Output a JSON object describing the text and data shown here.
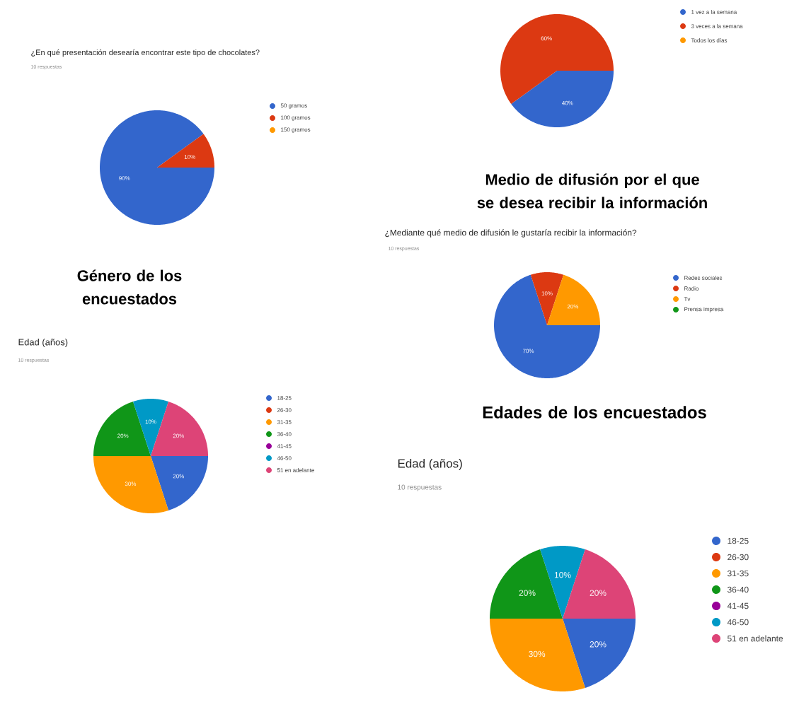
{
  "chart_data": [
    {
      "type": "pie",
      "title": "¿En qué presentación desearía encontrar este tipo de chocolates?",
      "annotations": [
        "10 respuestas"
      ],
      "categories": [
        "50 gramos",
        "100 gramos",
        "150 gramos"
      ],
      "values": [
        90,
        10,
        0
      ],
      "colors": [
        "#3366cc",
        "#dc3912",
        "#ff9900"
      ],
      "value_labels": [
        "90%",
        "10%",
        null
      ],
      "legend": "right"
    },
    {
      "type": "pie",
      "categories": [
        "1 vez a la semana",
        "3 veces a la semana",
        "Todos los días"
      ],
      "values": [
        40,
        60,
        0
      ],
      "colors": [
        "#3366cc",
        "#dc3912",
        "#ff9900"
      ],
      "value_labels": [
        "40%",
        "60%",
        null
      ],
      "legend": "right"
    },
    {
      "type": "pie",
      "title": "Género de los encuestados",
      "subtitle": "Edad (años)",
      "annotations": [
        "10 respuestas"
      ],
      "categories": [
        "18-25",
        "26-30",
        "31-35",
        "36-40",
        "41-45",
        "46-50",
        "51 en adelante"
      ],
      "values": [
        20,
        0,
        30,
        20,
        0,
        10,
        20
      ],
      "colors": [
        "#3366cc",
        "#dc3912",
        "#ff9900",
        "#109618",
        "#990099",
        "#0099c6",
        "#dd4477"
      ],
      "value_labels": [
        "20%",
        null,
        "30%",
        "20%",
        null,
        "10%",
        "20%"
      ],
      "legend": "right"
    },
    {
      "type": "pie",
      "title": "Medio de difusión por el que se desea recibir la información",
      "subtitle": "¿Mediante qué medio de difusión le gustaría recibir la información?",
      "annotations": [
        "10 respuestas"
      ],
      "categories": [
        "Redes sociales",
        "Radio",
        "Tv",
        "Prensa impresa"
      ],
      "values": [
        70,
        10,
        20,
        0
      ],
      "colors": [
        "#3366cc",
        "#dc3912",
        "#ff9900",
        "#109618"
      ],
      "value_labels": [
        "70%",
        "10%",
        "20%",
        null
      ],
      "legend": "right"
    },
    {
      "type": "pie",
      "title": "Edades de los encuestados",
      "subtitle": "Edad (años)",
      "annotations": [
        "10 respuestas"
      ],
      "categories": [
        "18-25",
        "26-30",
        "31-35",
        "36-40",
        "41-45",
        "46-50",
        "51 en adelante"
      ],
      "values": [
        20,
        0,
        30,
        20,
        0,
        10,
        20
      ],
      "colors": [
        "#3366cc",
        "#dc3912",
        "#ff9900",
        "#109618",
        "#990099",
        "#0099c6",
        "#dd4477"
      ],
      "value_labels": [
        "20%",
        null,
        "30%",
        "20%",
        null,
        "10%",
        "20%"
      ],
      "legend": "right"
    }
  ]
}
